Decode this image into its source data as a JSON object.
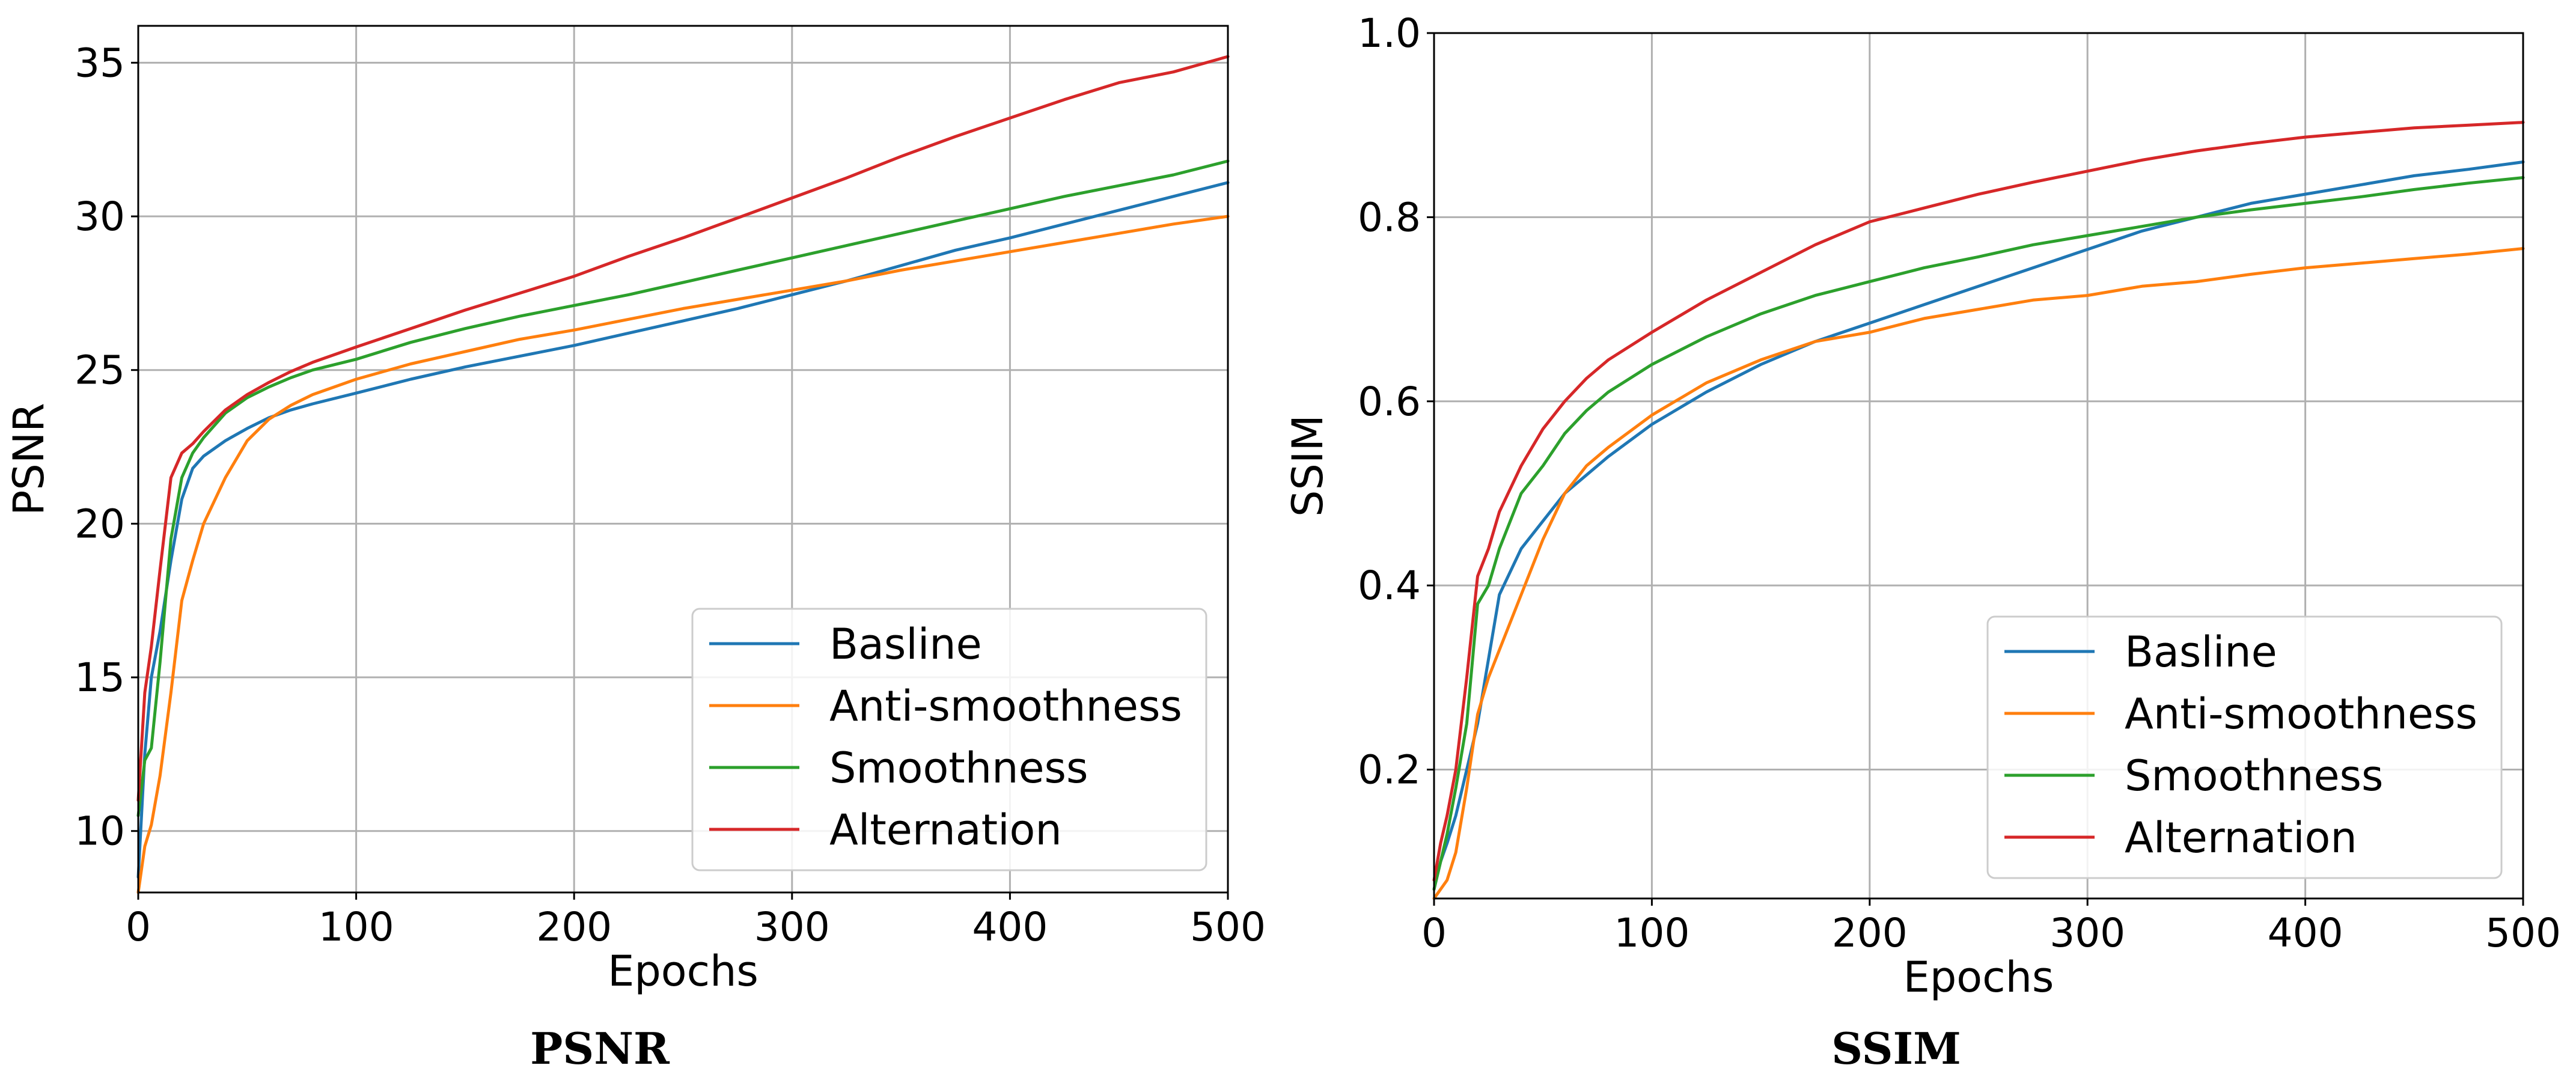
{
  "chart_data": [
    {
      "type": "line",
      "caption": "PSNR",
      "xlabel": "Epochs",
      "ylabel": "PSNR",
      "xlim": [
        0,
        500
      ],
      "ylim": [
        8,
        36.2
      ],
      "xticks": [
        0,
        100,
        200,
        300,
        400,
        500
      ],
      "yticks": [
        10,
        15,
        20,
        25,
        30,
        35
      ],
      "grid": true,
      "legend_position": "lower-right",
      "series": [
        {
          "name": "Basline",
          "color": "#1f77b4",
          "x": [
            0,
            3,
            6,
            10,
            15,
            20,
            25,
            30,
            40,
            50,
            60,
            70,
            80,
            100,
            125,
            150,
            175,
            200,
            225,
            250,
            275,
            300,
            325,
            350,
            375,
            400,
            425,
            450,
            475,
            500
          ],
          "y": [
            8.5,
            12.5,
            15,
            16.5,
            18.8,
            20.8,
            21.8,
            22.2,
            22.7,
            23.1,
            23.45,
            23.7,
            23.9,
            24.25,
            24.7,
            25.1,
            25.45,
            25.8,
            26.2,
            26.6,
            27.0,
            27.45,
            27.9,
            28.4,
            28.9,
            29.3,
            29.75,
            30.2,
            30.65,
            31.1
          ]
        },
        {
          "name": "Anti-smoothness",
          "color": "#ff7f0e",
          "x": [
            0,
            3,
            6,
            10,
            15,
            20,
            25,
            30,
            40,
            50,
            60,
            70,
            80,
            100,
            125,
            150,
            175,
            200,
            225,
            250,
            275,
            300,
            325,
            350,
            375,
            400,
            425,
            450,
            475,
            500
          ],
          "y": [
            8.0,
            9.5,
            10.2,
            11.8,
            14.5,
            17.5,
            18.8,
            20.0,
            21.5,
            22.7,
            23.4,
            23.85,
            24.2,
            24.7,
            25.2,
            25.6,
            26.0,
            26.3,
            26.65,
            27.0,
            27.3,
            27.6,
            27.9,
            28.25,
            28.55,
            28.85,
            29.15,
            29.45,
            29.75,
            30.0
          ]
        },
        {
          "name": "Smoothness",
          "color": "#2ca02c",
          "x": [
            0,
            3,
            6,
            10,
            15,
            20,
            25,
            30,
            40,
            50,
            60,
            70,
            80,
            100,
            125,
            150,
            175,
            200,
            225,
            250,
            275,
            300,
            325,
            350,
            375,
            400,
            425,
            450,
            475,
            500
          ],
          "y": [
            10.5,
            12.3,
            12.7,
            15.5,
            19.5,
            21.5,
            22.3,
            22.8,
            23.6,
            24.1,
            24.45,
            24.75,
            25.0,
            25.35,
            25.9,
            26.35,
            26.75,
            27.1,
            27.45,
            27.85,
            28.25,
            28.65,
            29.05,
            29.45,
            29.85,
            30.25,
            30.65,
            31.0,
            31.35,
            31.8
          ]
        },
        {
          "name": "Alternation",
          "color": "#d62728",
          "x": [
            0,
            3,
            6,
            10,
            15,
            20,
            25,
            30,
            40,
            50,
            60,
            70,
            80,
            100,
            125,
            150,
            175,
            200,
            225,
            250,
            275,
            300,
            325,
            350,
            375,
            400,
            425,
            450,
            475,
            500
          ],
          "y": [
            11.0,
            14.5,
            16.0,
            18.5,
            21.5,
            22.3,
            22.6,
            23.0,
            23.7,
            24.2,
            24.6,
            24.95,
            25.25,
            25.75,
            26.35,
            26.95,
            27.5,
            28.05,
            28.7,
            29.3,
            29.95,
            30.6,
            31.25,
            31.95,
            32.6,
            33.2,
            33.8,
            34.35,
            34.7,
            35.2
          ]
        }
      ]
    },
    {
      "type": "line",
      "caption": "SSIM",
      "xlabel": "Epochs",
      "ylabel": "SSIM",
      "xlim": [
        0,
        500
      ],
      "ylim": [
        0.06,
        1.0
      ],
      "xticks": [
        0,
        100,
        200,
        300,
        400,
        500
      ],
      "yticks": [
        0.2,
        0.4,
        0.6,
        0.8,
        1.0
      ],
      "yticklabels": [
        "0.2",
        "0.4",
        "0.6",
        "0.8",
        "1.0"
      ],
      "grid": true,
      "legend_position": "lower-right",
      "series": [
        {
          "name": "Basline",
          "color": "#1f77b4",
          "x": [
            0,
            3,
            6,
            10,
            15,
            20,
            25,
            30,
            40,
            50,
            60,
            70,
            80,
            100,
            125,
            150,
            175,
            200,
            225,
            250,
            275,
            300,
            325,
            350,
            375,
            400,
            425,
            450,
            475,
            500
          ],
          "y": [
            0.07,
            0.1,
            0.12,
            0.15,
            0.2,
            0.25,
            0.32,
            0.39,
            0.44,
            0.47,
            0.5,
            0.52,
            0.54,
            0.575,
            0.61,
            0.64,
            0.665,
            0.685,
            0.705,
            0.725,
            0.745,
            0.765,
            0.785,
            0.8,
            0.815,
            0.825,
            0.835,
            0.845,
            0.852,
            0.86
          ]
        },
        {
          "name": "Anti-smoothness",
          "color": "#ff7f0e",
          "x": [
            0,
            3,
            6,
            10,
            15,
            20,
            25,
            30,
            40,
            50,
            60,
            70,
            80,
            100,
            125,
            150,
            175,
            200,
            225,
            250,
            275,
            300,
            325,
            350,
            375,
            400,
            425,
            450,
            475,
            500
          ],
          "y": [
            0.06,
            0.07,
            0.08,
            0.11,
            0.18,
            0.26,
            0.3,
            0.33,
            0.39,
            0.45,
            0.5,
            0.53,
            0.55,
            0.585,
            0.62,
            0.645,
            0.665,
            0.675,
            0.69,
            0.7,
            0.71,
            0.715,
            0.725,
            0.73,
            0.738,
            0.745,
            0.75,
            0.755,
            0.76,
            0.766
          ]
        },
        {
          "name": "Smoothness",
          "color": "#2ca02c",
          "x": [
            0,
            3,
            6,
            10,
            15,
            20,
            25,
            30,
            40,
            50,
            60,
            70,
            80,
            100,
            125,
            150,
            175,
            200,
            225,
            250,
            275,
            300,
            325,
            350,
            375,
            400,
            425,
            450,
            475,
            500
          ],
          "y": [
            0.07,
            0.1,
            0.13,
            0.18,
            0.25,
            0.38,
            0.4,
            0.44,
            0.5,
            0.53,
            0.565,
            0.59,
            0.61,
            0.64,
            0.67,
            0.695,
            0.715,
            0.73,
            0.745,
            0.757,
            0.77,
            0.78,
            0.79,
            0.8,
            0.808,
            0.815,
            0.822,
            0.83,
            0.837,
            0.843
          ]
        },
        {
          "name": "Alternation",
          "color": "#d62728",
          "x": [
            0,
            3,
            6,
            10,
            15,
            20,
            25,
            30,
            40,
            50,
            60,
            70,
            80,
            100,
            125,
            150,
            175,
            200,
            225,
            250,
            275,
            300,
            325,
            350,
            375,
            400,
            425,
            450,
            475,
            500
          ],
          "y": [
            0.08,
            0.12,
            0.15,
            0.2,
            0.3,
            0.41,
            0.44,
            0.48,
            0.53,
            0.57,
            0.6,
            0.625,
            0.645,
            0.675,
            0.71,
            0.74,
            0.77,
            0.795,
            0.81,
            0.825,
            0.838,
            0.85,
            0.862,
            0.872,
            0.88,
            0.887,
            0.892,
            0.897,
            0.9,
            0.903
          ]
        }
      ]
    }
  ]
}
